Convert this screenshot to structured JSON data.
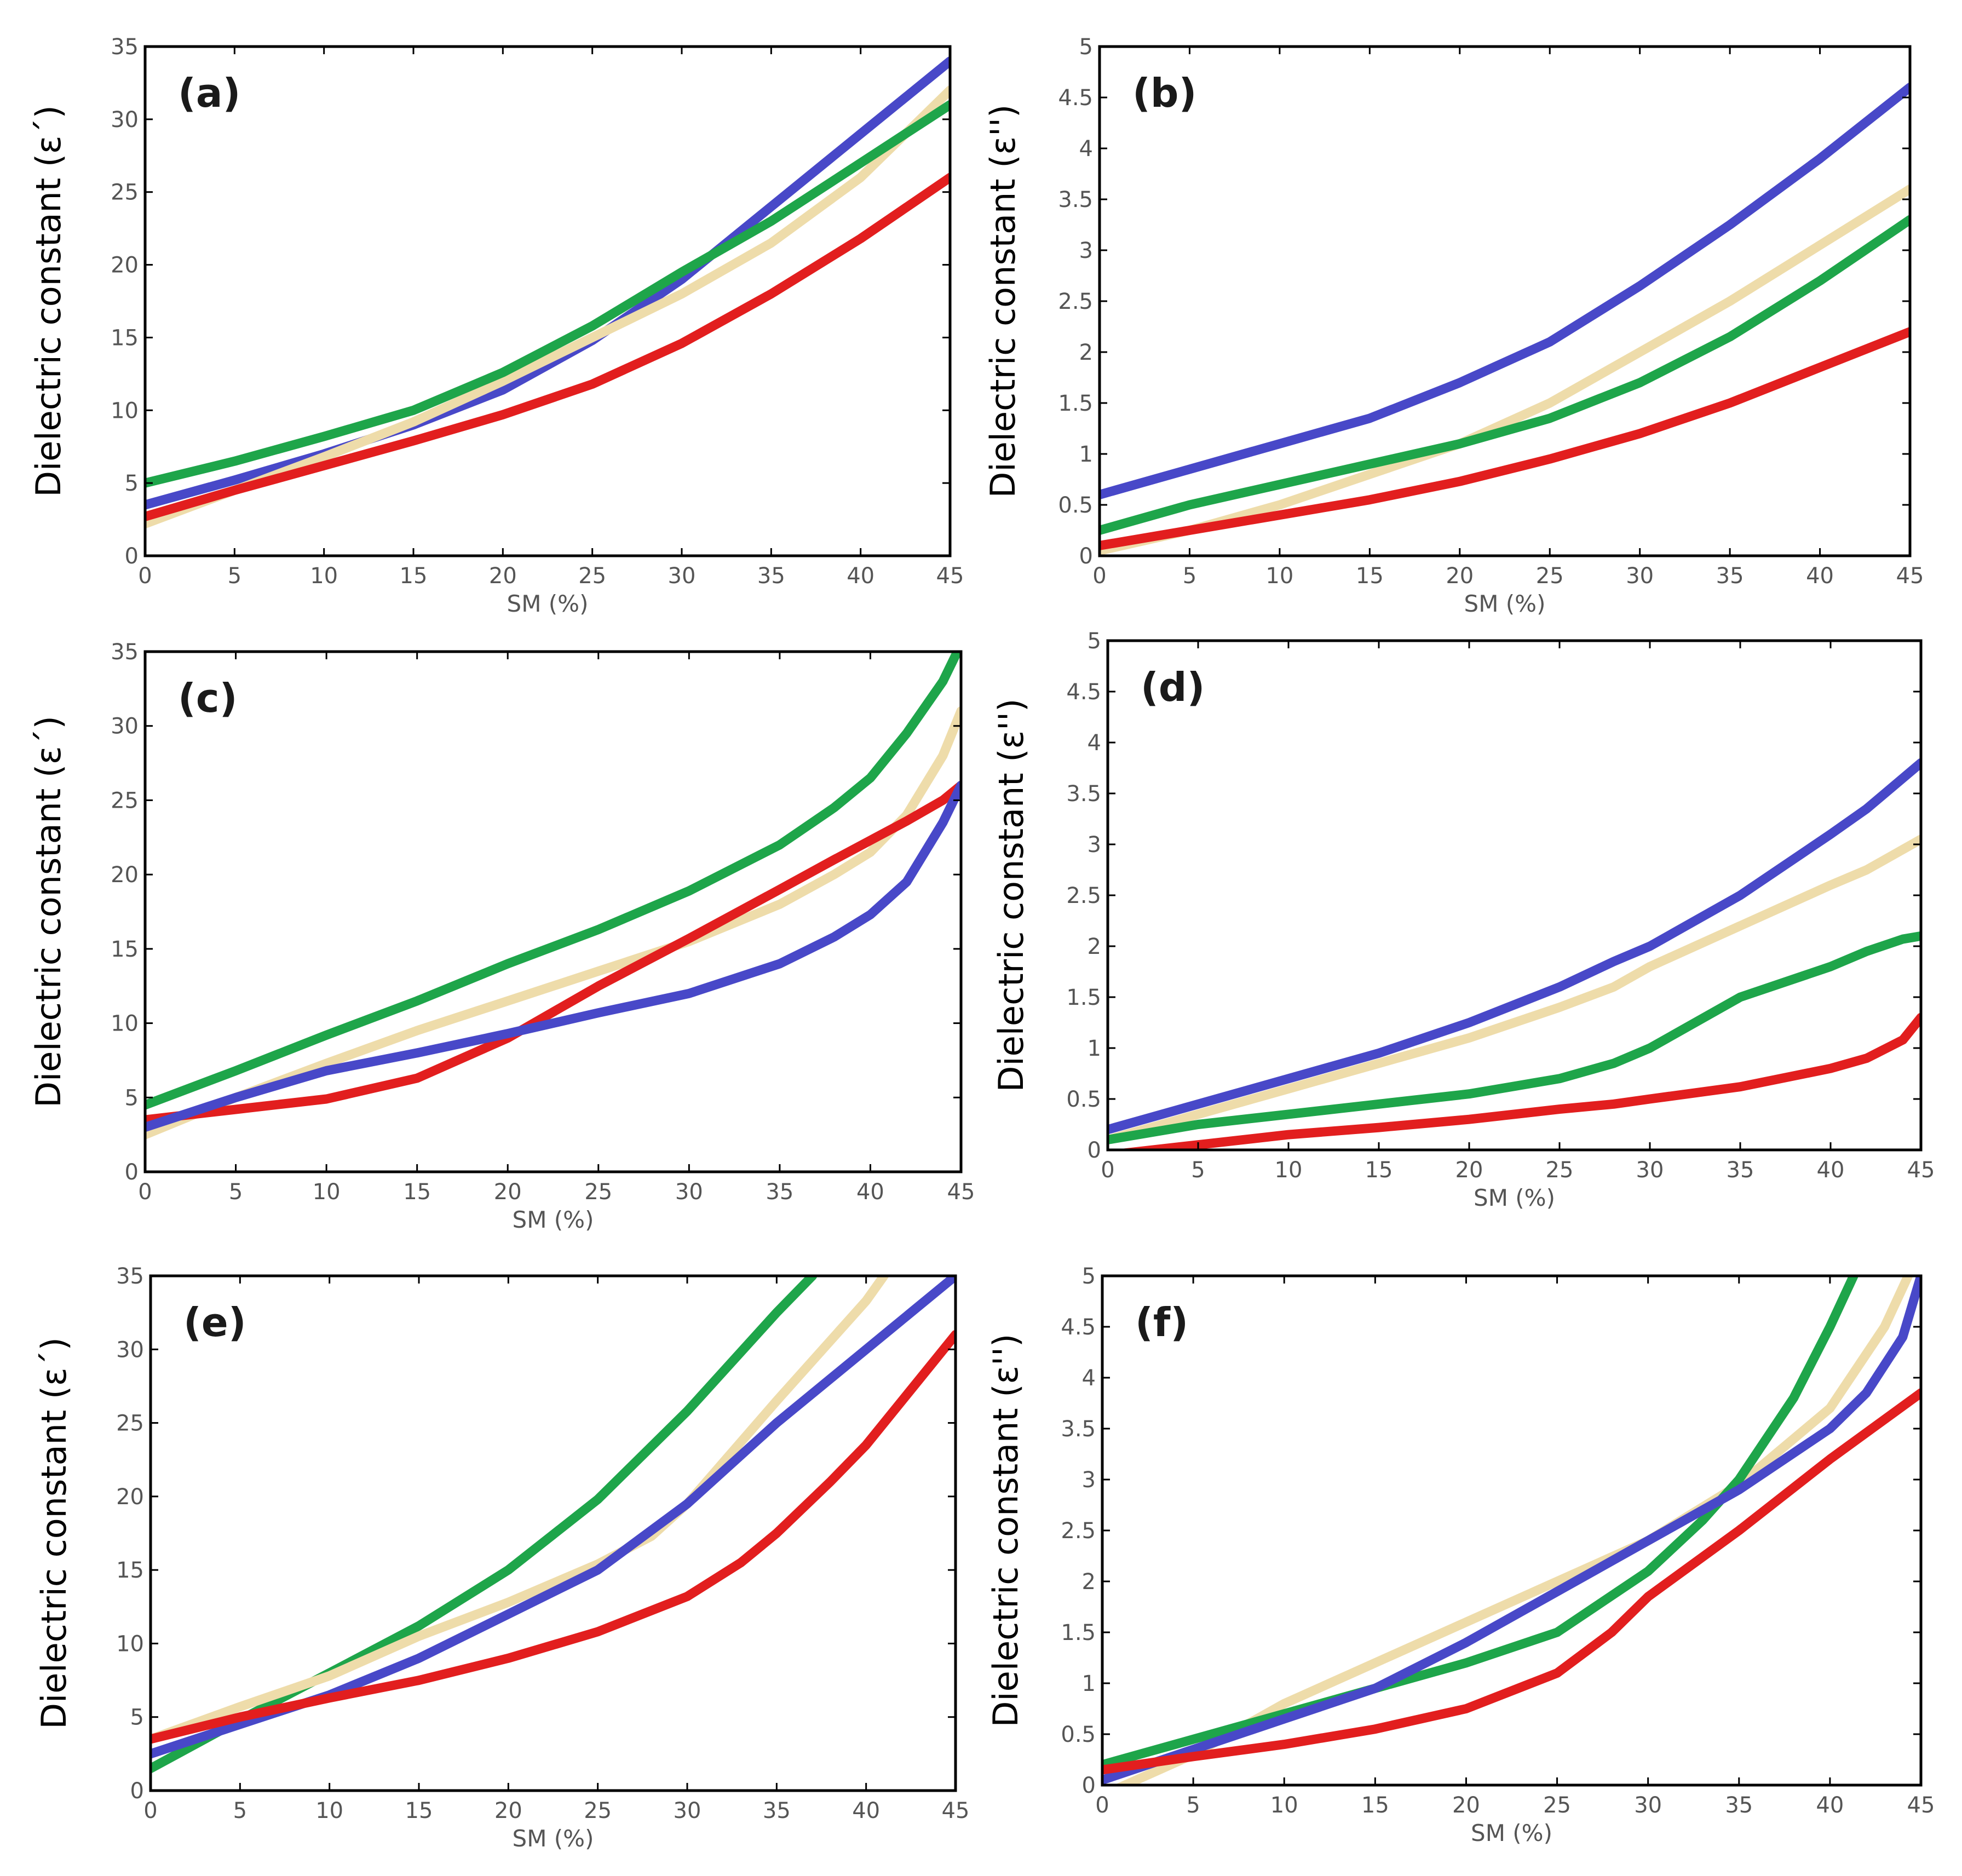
{
  "figure": {
    "name": "dielectric-constant-vs-soil-moisture"
  },
  "colors": {
    "blue": "#4848c8",
    "green": "#1ea54a",
    "cream": "#eedcaa",
    "red": "#e21e1e"
  },
  "chart_data": [
    {
      "type": "line",
      "panel_label": "(a)",
      "xlabel": "SM (%)",
      "ylabel": "Dielectric constant (ε΄)",
      "xlim": [
        0,
        45
      ],
      "ylim": [
        0,
        35
      ],
      "xticks": [
        0,
        5,
        10,
        15,
        20,
        25,
        30,
        35,
        40,
        45
      ],
      "yticks": [
        0,
        5,
        10,
        15,
        20,
        25,
        30,
        35
      ],
      "x": [
        0,
        5,
        10,
        15,
        20,
        25,
        30,
        35,
        40,
        45
      ],
      "series": [
        {
          "name": "blue",
          "color": "#4848c8",
          "values": [
            3.5,
            5.2,
            7.0,
            9.0,
            11.4,
            14.8,
            19.0,
            24.0,
            29.0,
            34.0
          ]
        },
        {
          "name": "cream",
          "color": "#eedcaa",
          "values": [
            2.2,
            4.5,
            6.8,
            9.2,
            12.0,
            15.0,
            18.0,
            21.5,
            26.0,
            32.0
          ]
        },
        {
          "name": "green",
          "color": "#1ea54a",
          "values": [
            5.0,
            6.5,
            8.2,
            10.0,
            12.6,
            15.8,
            19.5,
            23.0,
            27.0,
            31.0
          ]
        },
        {
          "name": "red",
          "color": "#e21e1e",
          "values": [
            2.7,
            4.5,
            6.2,
            7.9,
            9.7,
            11.8,
            14.6,
            18.0,
            21.8,
            26.0
          ]
        }
      ]
    },
    {
      "type": "line",
      "panel_label": "(b)",
      "xlabel": "SM (%)",
      "ylabel": "Dielectric constant (ε'')",
      "xlim": [
        0,
        45
      ],
      "ylim": [
        0,
        5
      ],
      "xticks": [
        0,
        5,
        10,
        15,
        20,
        25,
        30,
        35,
        40,
        45
      ],
      "yticks": [
        0,
        0.5,
        1,
        1.5,
        2,
        2.5,
        3,
        3.5,
        4,
        4.5,
        5
      ],
      "x": [
        0,
        5,
        10,
        15,
        20,
        25,
        30,
        35,
        40,
        45
      ],
      "series": [
        {
          "name": "blue",
          "color": "#4848c8",
          "values": [
            0.6,
            0.85,
            1.1,
            1.35,
            1.7,
            2.1,
            2.65,
            3.25,
            3.9,
            4.6
          ]
        },
        {
          "name": "cream",
          "color": "#eedcaa",
          "values": [
            0.05,
            0.25,
            0.5,
            0.8,
            1.1,
            1.5,
            2.0,
            2.5,
            3.05,
            3.6
          ]
        },
        {
          "name": "green",
          "color": "#1ea54a",
          "values": [
            0.25,
            0.5,
            0.7,
            0.9,
            1.1,
            1.35,
            1.7,
            2.15,
            2.7,
            3.3
          ]
        },
        {
          "name": "red",
          "color": "#e21e1e",
          "values": [
            0.1,
            0.25,
            0.4,
            0.55,
            0.73,
            0.95,
            1.2,
            1.5,
            1.85,
            2.2
          ]
        }
      ]
    },
    {
      "type": "line",
      "panel_label": "(c)",
      "xlabel": "SM (%)",
      "ylabel": "Dielectric constant (ε΄)",
      "xlim": [
        0,
        45
      ],
      "ylim": [
        0,
        35
      ],
      "xticks": [
        0,
        5,
        10,
        15,
        20,
        25,
        30,
        35,
        40,
        45
      ],
      "yticks": [
        0,
        5,
        10,
        15,
        20,
        25,
        30,
        35
      ],
      "x": [
        0,
        5,
        10,
        15,
        20,
        25,
        30,
        35,
        38,
        40,
        42,
        44,
        45
      ],
      "series": [
        {
          "name": "green",
          "color": "#1ea54a",
          "values": [
            4.5,
            6.8,
            9.2,
            11.5,
            14.0,
            16.3,
            18.9,
            22.0,
            24.5,
            26.5,
            29.5,
            33.0,
            35.5
          ]
        },
        {
          "name": "cream",
          "color": "#eedcaa",
          "values": [
            2.5,
            5.0,
            7.3,
            9.5,
            11.5,
            13.5,
            15.5,
            18.0,
            20.0,
            21.5,
            24.0,
            28.0,
            31.0
          ]
        },
        {
          "name": "red",
          "color": "#e21e1e",
          "values": [
            3.5,
            4.2,
            4.9,
            6.3,
            9.0,
            12.5,
            15.7,
            19.0,
            21.0,
            22.3,
            23.6,
            25.0,
            26.0
          ]
        },
        {
          "name": "blue",
          "color": "#4848c8",
          "values": [
            3.0,
            5.0,
            6.8,
            8.0,
            9.3,
            10.7,
            12.0,
            14.0,
            15.8,
            17.3,
            19.5,
            23.5,
            26.0
          ]
        }
      ]
    },
    {
      "type": "line",
      "panel_label": "(d)",
      "xlabel": "SM (%)",
      "ylabel": "Dielectric constant (ε'')",
      "xlim": [
        0,
        45
      ],
      "ylim": [
        0,
        5
      ],
      "xticks": [
        0,
        5,
        10,
        15,
        20,
        25,
        30,
        35,
        40,
        45
      ],
      "yticks": [
        0,
        0.5,
        1,
        1.5,
        2,
        2.5,
        3,
        3.5,
        4,
        4.5,
        5
      ],
      "x": [
        0,
        5,
        10,
        15,
        20,
        25,
        28,
        30,
        35,
        40,
        42,
        44,
        45
      ],
      "series": [
        {
          "name": "blue",
          "color": "#4848c8",
          "values": [
            0.2,
            0.45,
            0.7,
            0.95,
            1.25,
            1.6,
            1.85,
            2.0,
            2.5,
            3.1,
            3.35,
            3.65,
            3.8
          ]
        },
        {
          "name": "cream",
          "color": "#eedcaa",
          "values": [
            0.1,
            0.35,
            0.6,
            0.85,
            1.1,
            1.4,
            1.6,
            1.8,
            2.2,
            2.6,
            2.75,
            2.95,
            3.05
          ]
        },
        {
          "name": "green",
          "color": "#1ea54a",
          "values": [
            0.1,
            0.25,
            0.35,
            0.45,
            0.55,
            0.7,
            0.85,
            1.0,
            1.5,
            1.8,
            1.95,
            2.07,
            2.1
          ]
        },
        {
          "name": "red",
          "color": "#e21e1e",
          "values": [
            -0.05,
            0.05,
            0.15,
            0.22,
            0.3,
            0.4,
            0.45,
            0.5,
            0.62,
            0.8,
            0.9,
            1.08,
            1.3
          ]
        }
      ]
    },
    {
      "type": "line",
      "panel_label": "(e)",
      "xlabel": "SM (%)",
      "ylabel": "Dielectric constant (ε΄)",
      "xlim": [
        0,
        45
      ],
      "ylim": [
        0,
        35
      ],
      "xticks": [
        0,
        5,
        10,
        15,
        20,
        25,
        30,
        35,
        40,
        45
      ],
      "yticks": [
        0,
        5,
        10,
        15,
        20,
        25,
        30,
        35
      ],
      "series": [
        {
          "name": "green",
          "color": "#1ea54a",
          "x": [
            0,
            5,
            10,
            15,
            20,
            25,
            30,
            35,
            37
          ],
          "values": [
            1.5,
            4.8,
            8.0,
            11.2,
            15.0,
            19.8,
            25.8,
            32.5,
            35.0
          ]
        },
        {
          "name": "cream",
          "color": "#eedcaa",
          "x": [
            0,
            5,
            10,
            15,
            20,
            25,
            28,
            30,
            35,
            40,
            41
          ],
          "values": [
            3.5,
            5.7,
            7.8,
            10.5,
            12.8,
            15.4,
            17.3,
            19.5,
            26.5,
            33.3,
            35.0
          ]
        },
        {
          "name": "blue",
          "color": "#4848c8",
          "x": [
            0,
            5,
            10,
            15,
            20,
            25,
            30,
            35,
            40,
            45
          ],
          "values": [
            2.5,
            4.5,
            6.5,
            9.0,
            12.0,
            15.0,
            19.5,
            25.0,
            30.0,
            35.0
          ]
        },
        {
          "name": "red",
          "color": "#e21e1e",
          "x": [
            0,
            5,
            10,
            15,
            20,
            25,
            30,
            33,
            35,
            38,
            40,
            43,
            45
          ],
          "values": [
            3.5,
            5.0,
            6.3,
            7.5,
            9.0,
            10.8,
            13.2,
            15.5,
            17.5,
            21.0,
            23.5,
            28.0,
            31.0
          ]
        }
      ]
    },
    {
      "type": "line",
      "panel_label": "(f)",
      "xlabel": "SM (%)",
      "ylabel": "Dielectric constant (ε'')",
      "xlim": [
        0,
        45
      ],
      "ylim": [
        0,
        5
      ],
      "xticks": [
        0,
        5,
        10,
        15,
        20,
        25,
        30,
        35,
        40,
        45
      ],
      "yticks": [
        0,
        0.5,
        1,
        1.5,
        2,
        2.5,
        3,
        3.5,
        4,
        4.5,
        5
      ],
      "series": [
        {
          "name": "cream",
          "color": "#eedcaa",
          "x": [
            0,
            5,
            10,
            15,
            20,
            25,
            30,
            35,
            40,
            43,
            44.3
          ],
          "values": [
            -0.1,
            0.3,
            0.8,
            1.2,
            1.6,
            2.0,
            2.4,
            2.95,
            3.7,
            4.5,
            5.0
          ]
        },
        {
          "name": "green",
          "color": "#1ea54a",
          "x": [
            0,
            5,
            10,
            15,
            20,
            25,
            30,
            33,
            35,
            38,
            40,
            41.3
          ],
          "values": [
            0.2,
            0.45,
            0.7,
            0.95,
            1.2,
            1.5,
            2.1,
            2.6,
            3.0,
            3.8,
            4.5,
            5.0
          ]
        },
        {
          "name": "blue",
          "color": "#4848c8",
          "x": [
            0,
            5,
            10,
            15,
            20,
            25,
            30,
            35,
            40,
            42,
            44,
            45
          ],
          "values": [
            0.05,
            0.35,
            0.65,
            0.95,
            1.4,
            1.9,
            2.4,
            2.9,
            3.5,
            3.85,
            4.4,
            5.0
          ]
        },
        {
          "name": "red",
          "color": "#e21e1e",
          "x": [
            0,
            5,
            10,
            15,
            20,
            25,
            28,
            30,
            35,
            40,
            45
          ],
          "values": [
            0.15,
            0.28,
            0.4,
            0.55,
            0.75,
            1.1,
            1.5,
            1.85,
            2.5,
            3.2,
            3.85
          ]
        }
      ]
    }
  ]
}
